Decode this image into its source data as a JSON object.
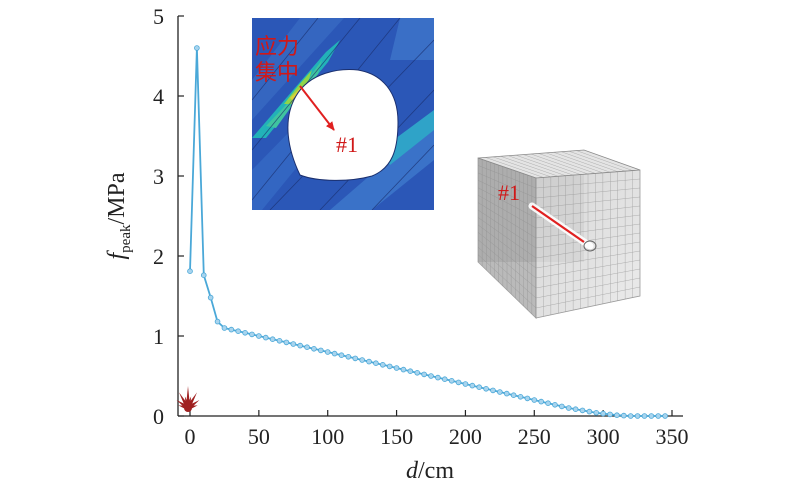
{
  "chart_data": {
    "type": "line",
    "xlabel": "d/cm",
    "xlabel_parts": {
      "var": "d",
      "unit": "/cm"
    },
    "ylabel": "f_peak/MPa",
    "ylabel_parts": {
      "var": "f",
      "sub": "peak",
      "unit": "/MPa"
    },
    "xlim": [
      -8,
      350
    ],
    "ylim": [
      0,
      5
    ],
    "xticks": [
      "0",
      "50",
      "100",
      "150",
      "200",
      "250",
      "300",
      "350"
    ],
    "yticks": [
      "0",
      "1",
      "2",
      "3",
      "4",
      "5"
    ],
    "grid": false,
    "series": [
      {
        "color": "#4aa8d8",
        "x": [
          0,
          5,
          10,
          15,
          20,
          25,
          30,
          35,
          40,
          45,
          50,
          55,
          60,
          65,
          70,
          75,
          80,
          85,
          90,
          95,
          100,
          105,
          110,
          115,
          120,
          125,
          130,
          135,
          140,
          145,
          150,
          155,
          160,
          165,
          170,
          175,
          180,
          185,
          190,
          195,
          200,
          205,
          210,
          215,
          220,
          225,
          230,
          235,
          240,
          245,
          250,
          255,
          260,
          265,
          270,
          275,
          280,
          285,
          290,
          295,
          300,
          305,
          310,
          315,
          320,
          325,
          330,
          335,
          340,
          345
        ],
        "y": [
          1.81,
          4.6,
          1.76,
          1.48,
          1.18,
          1.1,
          1.08,
          1.06,
          1.04,
          1.02,
          1.0,
          0.98,
          0.96,
          0.94,
          0.92,
          0.9,
          0.88,
          0.86,
          0.84,
          0.82,
          0.8,
          0.78,
          0.76,
          0.74,
          0.72,
          0.7,
          0.68,
          0.66,
          0.64,
          0.62,
          0.6,
          0.58,
          0.56,
          0.54,
          0.52,
          0.5,
          0.48,
          0.46,
          0.44,
          0.42,
          0.4,
          0.38,
          0.36,
          0.34,
          0.32,
          0.3,
          0.28,
          0.26,
          0.24,
          0.22,
          0.2,
          0.18,
          0.16,
          0.14,
          0.12,
          0.1,
          0.085,
          0.07,
          0.055,
          0.04,
          0.03,
          0.02,
          0.01,
          0.005,
          0.0,
          0.0,
          0.0,
          0.0,
          0.0,
          0.0
        ]
      }
    ],
    "annotations": {
      "concentration_label_line1": "应力",
      "concentration_label_line2": "集中",
      "borehole_label_inset": "#1",
      "borehole_label_cube": "#1"
    },
    "colors": {
      "line": "#4aa8d8",
      "marker_fill": "#a8d4ee",
      "arrow": "#e02020",
      "label": "#d01818",
      "burst_icon": "#a02020",
      "inset_background": "#2b57b7"
    },
    "icons": [
      "burst-icon",
      "stress-contour-inset",
      "rock-cube-model"
    ]
  }
}
